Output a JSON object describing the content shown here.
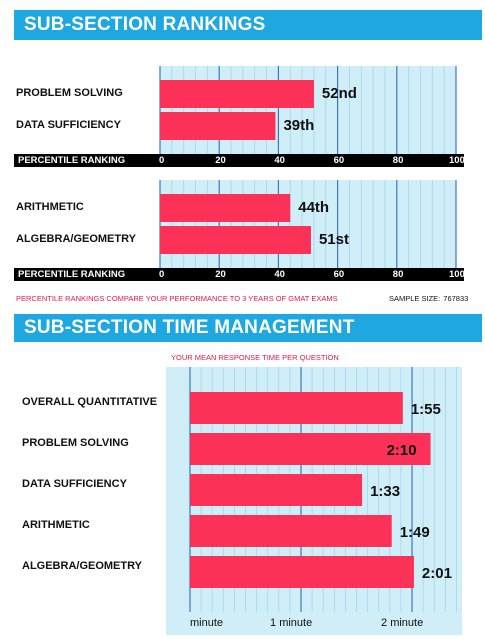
{
  "section1": {
    "title": "SUB-SECTION RANKINGS"
  },
  "section2": {
    "title": "SUB-SECTION TIME MANAGEMENT"
  },
  "note": "PERCENTILE RANKINGS COMPARE YOUR PERFORMANCE TO 3 YEARS OF GMAT EXAMS",
  "sample": {
    "label": "SAMPLE SIZE:",
    "value": "767833"
  },
  "colors": {
    "bar": "#fc3157",
    "plot_bg": "#cfeef8",
    "grid": "#a2d6ec",
    "major_grid": "#3a76c9",
    "banner": "#1ea7e1"
  },
  "chart_data": [
    {
      "type": "bar",
      "orientation": "horizontal",
      "categories": [
        "PROBLEM SOLVING",
        "DATA SUFFICIENCY"
      ],
      "values": [
        52,
        39
      ],
      "data_labels": [
        "52nd",
        "39th"
      ],
      "xlabel": "PERCENTILE RANKING",
      "xlim": [
        0,
        100
      ],
      "xticks": [
        "0",
        "20",
        "40",
        "60",
        "80",
        "100"
      ]
    },
    {
      "type": "bar",
      "orientation": "horizontal",
      "categories": [
        "ARITHMETIC",
        "ALGEBRA/GEOMETRY"
      ],
      "values": [
        44,
        51
      ],
      "data_labels": [
        "44th",
        "51st"
      ],
      "xlabel": "PERCENTILE RANKING",
      "xlim": [
        0,
        100
      ],
      "xticks": [
        "0",
        "20",
        "40",
        "60",
        "80",
        "100"
      ]
    },
    {
      "type": "bar",
      "orientation": "horizontal",
      "title": "YOUR MEAN RESPONSE TIME PER QUESTION",
      "categories": [
        "OVERALL QUANTITATIVE",
        "PROBLEM SOLVING",
        "DATA SUFFICIENCY",
        "ARITHMETIC",
        "ALGEBRA/GEOMETRY"
      ],
      "values": [
        1.917,
        2.167,
        1.55,
        1.817,
        2.017
      ],
      "data_labels": [
        "1:55",
        "2:10",
        "1:33",
        "1:49",
        "2:01"
      ],
      "units": "minutes",
      "xlim": [
        0,
        2.45
      ],
      "xticks": [
        0,
        1,
        2
      ],
      "xtick_labels": [
        "minute",
        "1 minute",
        "2 minute"
      ]
    }
  ]
}
